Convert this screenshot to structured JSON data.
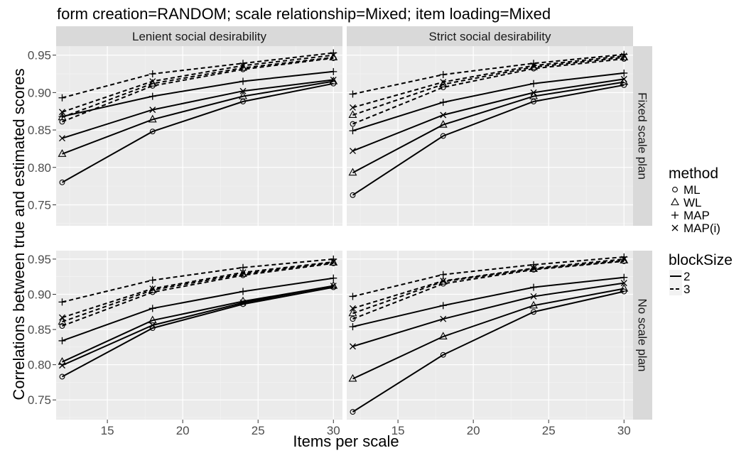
{
  "chart_data": {
    "type": "line",
    "title": "form creation=RANDOM; scale relationship=Mixed; item loading=Mixed",
    "xlabel": "Items per scale",
    "ylabel": "Correlations between true and estimated scores",
    "x_ticks": [
      15,
      20,
      25,
      30
    ],
    "y_ticks": [
      0.75,
      0.8,
      0.85,
      0.9,
      0.95
    ],
    "y_tick_labels": [
      "0.75",
      "0.80",
      "0.85",
      "0.90",
      "0.95"
    ],
    "xlim": [
      11.6,
      30.6
    ],
    "ylim": [
      0.722,
      0.962
    ],
    "grid": true,
    "legend_position": "right",
    "col_facets": [
      "Lenient social desirability",
      "Strict social desirability"
    ],
    "row_facets": [
      "Fixed scale plan",
      "No scale plan"
    ],
    "legend": {
      "method": {
        "title": "method",
        "items": [
          {
            "label": "ML",
            "shape": "circle"
          },
          {
            "label": "WL",
            "shape": "triangle"
          },
          {
            "label": "MAP",
            "shape": "plus"
          },
          {
            "label": "MAP(i)",
            "shape": "cross"
          }
        ]
      },
      "blockSize": {
        "title": "blockSize",
        "items": [
          {
            "label": "2",
            "linetype": "solid"
          },
          {
            "label": "3",
            "linetype": "dashed"
          }
        ]
      }
    },
    "x": [
      12,
      18,
      24,
      30
    ],
    "panels": [
      {
        "col": "Lenient social desirability",
        "row": "Fixed scale plan",
        "series": [
          {
            "method": "ML",
            "blockSize": "2",
            "values": [
              0.78,
              0.848,
              0.888,
              0.912
            ]
          },
          {
            "method": "WL",
            "blockSize": "2",
            "values": [
              0.818,
              0.864,
              0.895,
              0.915
            ]
          },
          {
            "method": "MAP",
            "blockSize": "2",
            "values": [
              0.868,
              0.895,
              0.915,
              0.928
            ]
          },
          {
            "method": "MAP(i)",
            "blockSize": "2",
            "values": [
              0.839,
              0.877,
              0.902,
              0.917
            ]
          },
          {
            "method": "ML",
            "blockSize": "3",
            "values": [
              0.861,
              0.909,
              0.931,
              0.946
            ]
          },
          {
            "method": "WL",
            "blockSize": "3",
            "values": [
              0.867,
              0.912,
              0.933,
              0.947
            ]
          },
          {
            "method": "MAP",
            "blockSize": "3",
            "values": [
              0.893,
              0.925,
              0.939,
              0.953
            ]
          },
          {
            "method": "MAP(i)",
            "blockSize": "3",
            "values": [
              0.874,
              0.915,
              0.936,
              0.95
            ]
          }
        ]
      },
      {
        "col": "Strict social desirability",
        "row": "Fixed scale plan",
        "series": [
          {
            "method": "ML",
            "blockSize": "2",
            "values": [
              0.763,
              0.842,
              0.888,
              0.91
            ]
          },
          {
            "method": "WL",
            "blockSize": "2",
            "values": [
              0.793,
              0.857,
              0.895,
              0.914
            ]
          },
          {
            "method": "MAP",
            "blockSize": "2",
            "values": [
              0.849,
              0.887,
              0.912,
              0.926
            ]
          },
          {
            "method": "MAP(i)",
            "blockSize": "2",
            "values": [
              0.822,
              0.87,
              0.9,
              0.918
            ]
          },
          {
            "method": "ML",
            "blockSize": "3",
            "values": [
              0.858,
              0.907,
              0.932,
              0.945
            ]
          },
          {
            "method": "WL",
            "blockSize": "3",
            "values": [
              0.87,
              0.911,
              0.934,
              0.947
            ]
          },
          {
            "method": "MAP",
            "blockSize": "3",
            "values": [
              0.898,
              0.924,
              0.939,
              0.951
            ]
          },
          {
            "method": "MAP(i)",
            "blockSize": "3",
            "values": [
              0.88,
              0.914,
              0.936,
              0.949
            ]
          }
        ]
      },
      {
        "col": "Lenient social desirability",
        "row": "No scale plan",
        "series": [
          {
            "method": "ML",
            "blockSize": "2",
            "values": [
              0.783,
              0.852,
              0.886,
              0.91
            ]
          },
          {
            "method": "WL",
            "blockSize": "2",
            "values": [
              0.804,
              0.863,
              0.89,
              0.912
            ]
          },
          {
            "method": "MAP",
            "blockSize": "2",
            "values": [
              0.834,
              0.88,
              0.904,
              0.923
            ]
          },
          {
            "method": "MAP(i)",
            "blockSize": "2",
            "values": [
              0.799,
              0.856,
              0.888,
              0.912
            ]
          },
          {
            "method": "ML",
            "blockSize": "3",
            "values": [
              0.855,
              0.903,
              0.927,
              0.944
            ]
          },
          {
            "method": "WL",
            "blockSize": "3",
            "values": [
              0.861,
              0.906,
              0.929,
              0.945
            ]
          },
          {
            "method": "MAP",
            "blockSize": "3",
            "values": [
              0.889,
              0.92,
              0.938,
              0.95
            ]
          },
          {
            "method": "MAP(i)",
            "blockSize": "3",
            "values": [
              0.867,
              0.908,
              0.931,
              0.946
            ]
          }
        ]
      },
      {
        "col": "Strict social desirability",
        "row": "No scale plan",
        "series": [
          {
            "method": "ML",
            "blockSize": "2",
            "values": [
              0.733,
              0.814,
              0.875,
              0.904
            ]
          },
          {
            "method": "WL",
            "blockSize": "2",
            "values": [
              0.78,
              0.84,
              0.884,
              0.908
            ]
          },
          {
            "method": "MAP",
            "blockSize": "2",
            "values": [
              0.854,
              0.884,
              0.91,
              0.924
            ]
          },
          {
            "method": "MAP(i)",
            "blockSize": "2",
            "values": [
              0.826,
              0.865,
              0.897,
              0.916
            ]
          },
          {
            "method": "ML",
            "blockSize": "3",
            "values": [
              0.865,
              0.915,
              0.935,
              0.947
            ]
          },
          {
            "method": "WL",
            "blockSize": "3",
            "values": [
              0.873,
              0.918,
              0.936,
              0.948
            ]
          },
          {
            "method": "MAP",
            "blockSize": "3",
            "values": [
              0.897,
              0.928,
              0.942,
              0.953
            ]
          },
          {
            "method": "MAP(i)",
            "blockSize": "3",
            "values": [
              0.88,
              0.919,
              0.937,
              0.95
            ]
          }
        ]
      }
    ]
  }
}
